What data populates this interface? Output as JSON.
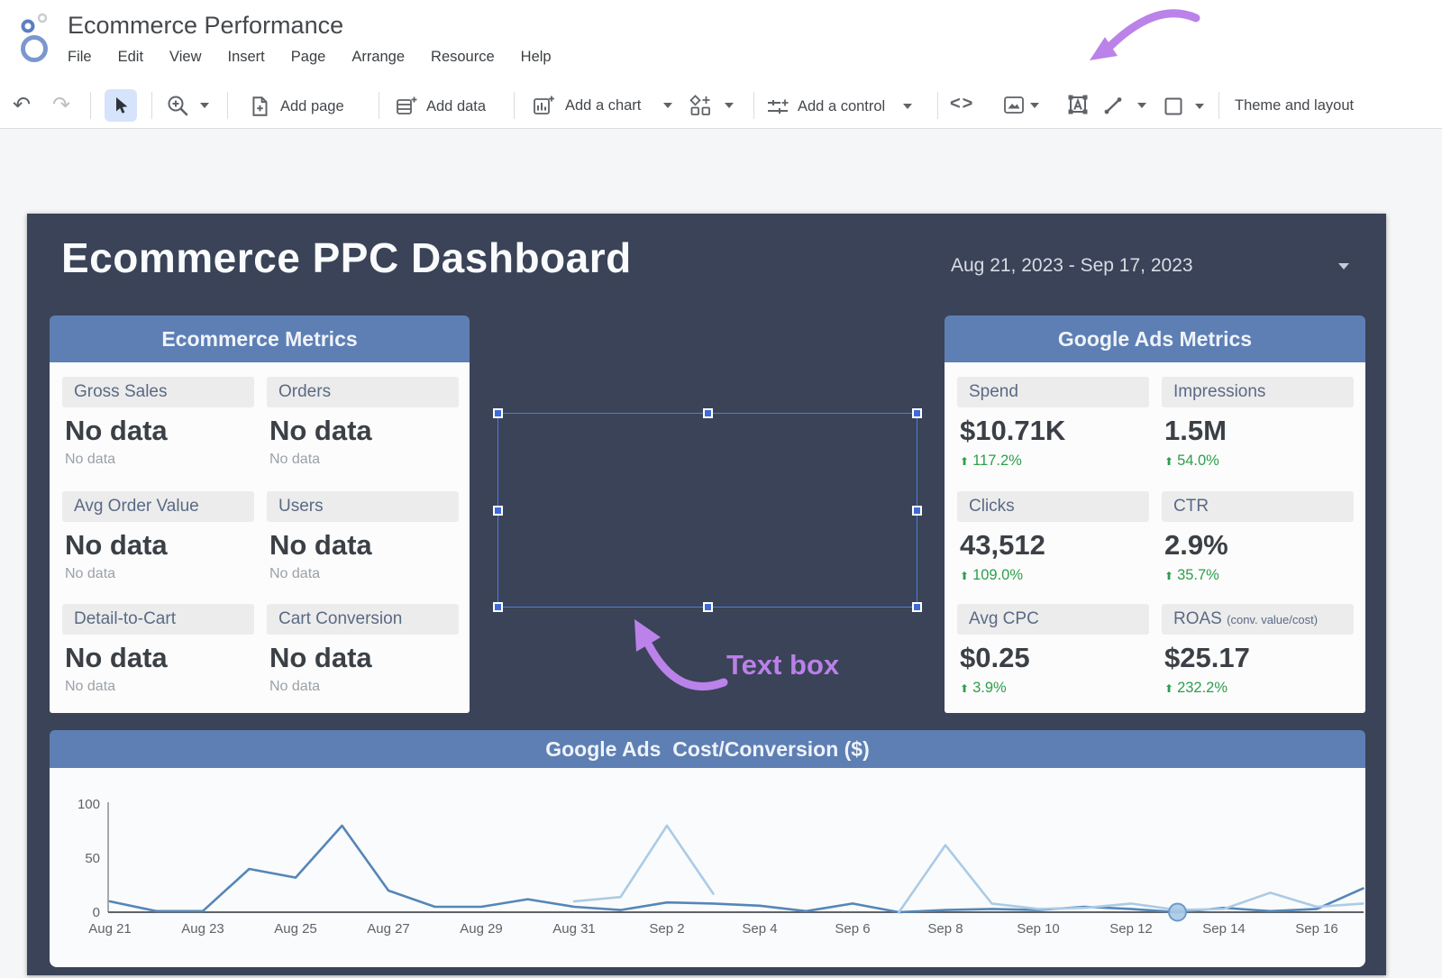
{
  "header": {
    "doc_title": "Ecommerce Performance",
    "menus": [
      "File",
      "Edit",
      "View",
      "Insert",
      "Page",
      "Arrange",
      "Resource",
      "Help"
    ]
  },
  "toolbar": {
    "add_page": "Add page",
    "add_data": "Add data",
    "add_chart": "Add a chart",
    "add_control": "Add a control",
    "embed": "<>",
    "theme_layout": "Theme and layout"
  },
  "icons": {
    "undo": "↶",
    "redo": "↷",
    "up_arrow": "⬆"
  },
  "canvas": {
    "title": "Ecommerce PPC Dashboard",
    "date_range": "Aug 21, 2023 - Sep 17, 2023",
    "annotation": "Text box",
    "ecom_panel": {
      "title": "Ecommerce Metrics",
      "metrics": [
        {
          "label": "Gross Sales",
          "value": "No data",
          "sub": "No data"
        },
        {
          "label": "Orders",
          "value": "No data",
          "sub": "No data"
        },
        {
          "label": "Avg Order Value",
          "value": "No data",
          "sub": "No data"
        },
        {
          "label": "Users",
          "value": "No data",
          "sub": "No data"
        },
        {
          "label": "Detail-to-Cart",
          "value": "No data",
          "sub": "No data"
        },
        {
          "label": "Cart Conversion",
          "value": "No data",
          "sub": "No data"
        }
      ]
    },
    "ads_panel": {
      "title": "Google Ads Metrics",
      "metrics": [
        {
          "label": "Spend",
          "value": "$10.71K",
          "delta": "117.2%"
        },
        {
          "label": "Impressions",
          "value": "1.5M",
          "delta": "54.0%"
        },
        {
          "label": "Clicks",
          "value": "43,512",
          "delta": "109.0%"
        },
        {
          "label": "CTR",
          "value": "2.9%",
          "delta": "35.7%"
        },
        {
          "label": "Avg CPC",
          "value": "$0.25",
          "delta": "3.9%"
        },
        {
          "label": "ROAS",
          "label_suffix": "(conv. value/cost)",
          "value": "$25.17",
          "delta": "232.2%"
        }
      ]
    }
  },
  "chart_data": {
    "type": "line",
    "title": "Google Ads  Cost/Conversion ($)",
    "x": [
      "Aug 21",
      "Aug 22",
      "Aug 23",
      "Aug 24",
      "Aug 25",
      "Aug 26",
      "Aug 27",
      "Aug 28",
      "Aug 29",
      "Aug 30",
      "Aug 31",
      "Sep 1",
      "Sep 2",
      "Sep 3",
      "Sep 4",
      "Sep 5",
      "Sep 6",
      "Sep 7",
      "Sep 8",
      "Sep 9",
      "Sep 10",
      "Sep 11",
      "Sep 12",
      "Sep 13",
      "Sep 14",
      "Sep 15",
      "Sep 16",
      "Sep 17"
    ],
    "series": [
      {
        "name": "cost-per-conversion-dark",
        "color": "#5586b7",
        "values": [
          10,
          1,
          1,
          40,
          32,
          80,
          20,
          5,
          5,
          12,
          5,
          2,
          9,
          8,
          6,
          1,
          8,
          0,
          2,
          3,
          2,
          5,
          3,
          0,
          4,
          1,
          3,
          22
        ]
      },
      {
        "name": "cost-per-conversion-light",
        "color": "#abcbe5",
        "values": [
          null,
          null,
          null,
          null,
          null,
          null,
          null,
          null,
          null,
          null,
          10,
          14,
          80,
          17,
          null,
          null,
          null,
          0,
          62,
          8,
          3,
          4,
          8,
          2,
          3,
          18,
          5,
          8
        ]
      }
    ],
    "ylim": [
      0,
      100
    ],
    "yticks": [
      0,
      50,
      100
    ],
    "xtick_labels": [
      "Aug 21",
      "Aug 23",
      "Aug 25",
      "Aug 27",
      "Aug 29",
      "Aug 31",
      "Sep 2",
      "Sep 4",
      "Sep 6",
      "Sep 8",
      "Sep 10",
      "Sep 12",
      "Sep 14",
      "Sep 16"
    ],
    "grid": false,
    "legend": "none",
    "highlight_point": {
      "series": 0,
      "x_index": 23
    }
  }
}
